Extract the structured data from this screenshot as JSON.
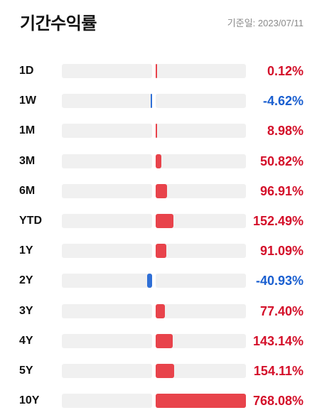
{
  "header": {
    "title": "기간수익률",
    "as_of": "기준일: 2023/07/11"
  },
  "colors": {
    "positive": "#e8434b",
    "negative": "#2f6fd6",
    "positive_text": "#d4102a",
    "negative_text": "#1a5fd0",
    "track": "#f0f0f0"
  },
  "returns": [
    {
      "period": "1D",
      "value": 0.12,
      "display": "0.12%"
    },
    {
      "period": "1W",
      "value": -4.62,
      "display": "-4.62%"
    },
    {
      "period": "1M",
      "value": 8.98,
      "display": "8.98%"
    },
    {
      "period": "3M",
      "value": 50.82,
      "display": "50.82%"
    },
    {
      "period": "6M",
      "value": 96.91,
      "display": "96.91%"
    },
    {
      "period": "YTD",
      "value": 152.49,
      "display": "152.49%"
    },
    {
      "period": "1Y",
      "value": 91.09,
      "display": "91.09%"
    },
    {
      "period": "2Y",
      "value": -40.93,
      "display": "-40.93%"
    },
    {
      "period": "3Y",
      "value": 77.4,
      "display": "77.40%"
    },
    {
      "period": "4Y",
      "value": 143.14,
      "display": "143.14%"
    },
    {
      "period": "5Y",
      "value": 154.11,
      "display": "154.11%"
    },
    {
      "period": "10Y",
      "value": 768.08,
      "display": "768.08%"
    }
  ]
}
